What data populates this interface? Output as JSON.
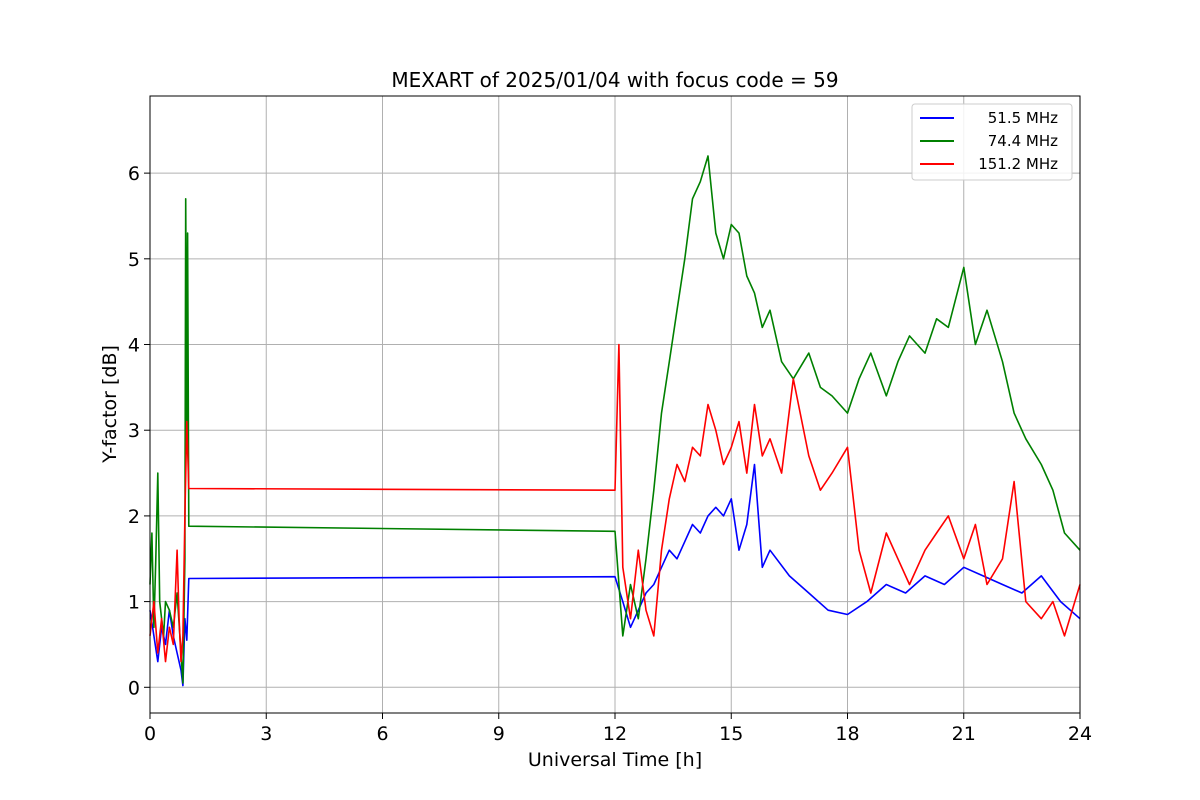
{
  "chart_data": {
    "type": "line",
    "title": "MEXART of 2025/01/04 with focus code = 59",
    "xlabel": "Universal Time [h]",
    "ylabel": "Y-factor [dB]",
    "xlim": [
      0,
      24
    ],
    "ylim": [
      -0.3,
      6.9
    ],
    "xticks": [
      0,
      3,
      6,
      9,
      12,
      15,
      18,
      21,
      24
    ],
    "yticks": [
      0,
      1,
      2,
      3,
      4,
      5,
      6
    ],
    "grid": true,
    "legend_position": "top-right",
    "series": [
      {
        "name": "51.5 MHz",
        "color": "#0000ff",
        "x": [
          0,
          0.1,
          0.2,
          0.3,
          0.4,
          0.5,
          0.6,
          0.7,
          0.8,
          0.85,
          0.9,
          0.95,
          1.0,
          12.0,
          12.2,
          12.4,
          12.6,
          12.8,
          13.0,
          13.2,
          13.4,
          13.6,
          13.8,
          14.0,
          14.2,
          14.4,
          14.6,
          14.8,
          15.0,
          15.2,
          15.4,
          15.6,
          15.8,
          16.0,
          16.5,
          17.0,
          17.5,
          18.0,
          18.5,
          19.0,
          19.5,
          20.0,
          20.5,
          21.0,
          21.5,
          22.0,
          22.5,
          23.0,
          23.5,
          24.0
        ],
        "y": [
          0.9,
          0.6,
          0.3,
          0.7,
          0.5,
          0.9,
          0.6,
          0.4,
          0.2,
          0.02,
          0.8,
          0.55,
          1.27,
          1.29,
          1.0,
          0.7,
          0.9,
          1.1,
          1.2,
          1.4,
          1.6,
          1.5,
          1.7,
          1.9,
          1.8,
          2.0,
          2.1,
          2.0,
          2.2,
          1.6,
          1.9,
          2.6,
          1.4,
          1.6,
          1.3,
          1.1,
          0.9,
          0.85,
          1.0,
          1.2,
          1.1,
          1.3,
          1.2,
          1.4,
          1.3,
          1.2,
          1.1,
          1.3,
          1.0,
          0.8
        ]
      },
      {
        "name": "74.4 MHz",
        "color": "#008000",
        "x": [
          0,
          0.05,
          0.1,
          0.15,
          0.2,
          0.25,
          0.3,
          0.35,
          0.4,
          0.5,
          0.6,
          0.7,
          0.8,
          0.85,
          0.9,
          0.92,
          0.95,
          0.97,
          1.0,
          12.0,
          12.2,
          12.4,
          12.6,
          12.8,
          13.0,
          13.2,
          13.4,
          13.6,
          13.8,
          14.0,
          14.2,
          14.4,
          14.6,
          14.8,
          15.0,
          15.2,
          15.4,
          15.6,
          15.8,
          16.0,
          16.3,
          16.6,
          17.0,
          17.3,
          17.6,
          18.0,
          18.3,
          18.6,
          19.0,
          19.3,
          19.6,
          20.0,
          20.3,
          20.6,
          21.0,
          21.3,
          21.6,
          22.0,
          22.3,
          22.6,
          23.0,
          23.3,
          23.6,
          24.0
        ],
        "y": [
          1.2,
          1.8,
          0.7,
          1.5,
          2.5,
          1.0,
          0.8,
          0.6,
          1.0,
          0.9,
          0.7,
          1.1,
          0.4,
          0.05,
          1.5,
          5.7,
          3.0,
          5.3,
          1.88,
          1.82,
          0.6,
          1.2,
          0.8,
          1.5,
          2.3,
          3.2,
          3.8,
          4.4,
          5.0,
          5.7,
          5.9,
          6.2,
          5.3,
          5.0,
          5.4,
          5.3,
          4.8,
          4.6,
          4.2,
          4.4,
          3.8,
          3.6,
          3.9,
          3.5,
          3.4,
          3.2,
          3.6,
          3.9,
          3.4,
          3.8,
          4.1,
          3.9,
          4.3,
          4.2,
          4.9,
          4.0,
          4.4,
          3.8,
          3.2,
          2.9,
          2.6,
          2.3,
          1.8,
          1.6
        ]
      },
      {
        "name": "151.2 MHz",
        "color": "#ff0000",
        "x": [
          0,
          0.1,
          0.2,
          0.3,
          0.4,
          0.5,
          0.6,
          0.7,
          0.75,
          0.8,
          0.85,
          0.9,
          0.95,
          1.0,
          12.0,
          12.1,
          12.2,
          12.4,
          12.6,
          12.8,
          13.0,
          13.2,
          13.4,
          13.6,
          13.8,
          14.0,
          14.2,
          14.4,
          14.6,
          14.8,
          15.0,
          15.2,
          15.4,
          15.6,
          15.8,
          16.0,
          16.3,
          16.6,
          17.0,
          17.3,
          17.6,
          18.0,
          18.3,
          18.6,
          19.0,
          19.3,
          19.6,
          20.0,
          20.3,
          20.6,
          21.0,
          21.3,
          21.6,
          22.0,
          22.3,
          22.6,
          23.0,
          23.3,
          23.6,
          24.0
        ],
        "y": [
          0.6,
          1.0,
          0.4,
          0.8,
          0.3,
          0.7,
          0.5,
          1.6,
          0.8,
          0.3,
          0.6,
          2.0,
          3.1,
          2.32,
          2.3,
          4.0,
          1.4,
          0.8,
          1.6,
          0.9,
          0.6,
          1.6,
          2.2,
          2.6,
          2.4,
          2.8,
          2.7,
          3.3,
          3.0,
          2.6,
          2.8,
          3.1,
          2.5,
          3.3,
          2.7,
          2.9,
          2.5,
          3.6,
          2.7,
          2.3,
          2.5,
          2.8,
          1.6,
          1.1,
          1.8,
          1.5,
          1.2,
          1.6,
          1.8,
          2.0,
          1.5,
          1.9,
          1.2,
          1.5,
          2.4,
          1.0,
          0.8,
          1.0,
          0.6,
          1.2
        ]
      }
    ]
  }
}
